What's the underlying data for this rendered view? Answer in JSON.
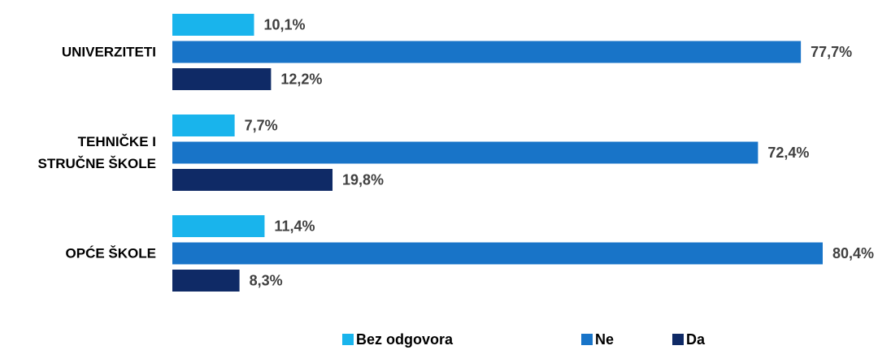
{
  "chart_data": {
    "type": "bar",
    "orientation": "horizontal",
    "categories": [
      "UNIVERZITETI",
      "TEHNIČKE I STRUČNE ŠKOLE",
      "OPĆE ŠKOLE"
    ],
    "series": [
      {
        "name": "Bez odgovora",
        "color": "#19b4ec",
        "values": [
          10.1,
          7.7,
          11.4
        ],
        "value_labels": [
          "10,1%",
          "7,7%",
          "11,4%"
        ]
      },
      {
        "name": "Ne",
        "color": "#1874c8",
        "values": [
          77.7,
          72.4,
          80.4
        ],
        "value_labels": [
          "77,7%",
          "72,4%",
          "80,4%"
        ]
      },
      {
        "name": "Da",
        "color": "#0f2a66",
        "values": [
          12.2,
          19.8,
          8.3
        ],
        "value_labels": [
          "12,2%",
          "19,8%",
          "8,3%"
        ]
      }
    ],
    "legend": "bottom"
  }
}
